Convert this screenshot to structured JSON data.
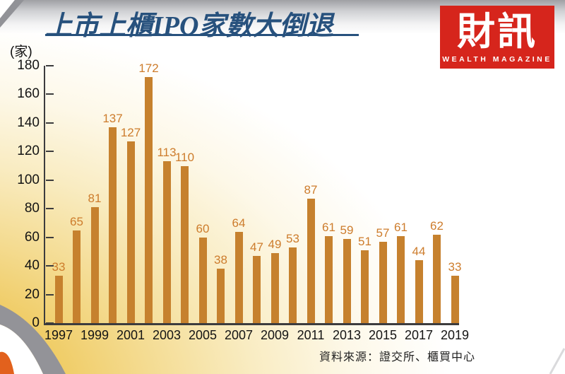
{
  "header": {
    "title": "上市上櫃IPO家數大倒退",
    "unit_label": "(家)",
    "source": "資料來源：證交所、櫃買中心"
  },
  "logo": {
    "brand": "財訊",
    "tagline": "WEALTH MAGAZINE"
  },
  "colors": {
    "bar": "#c6812e",
    "value_label": "#cd7c2c",
    "title_blue": "#27517d",
    "logo_red": "#d6251c",
    "axis": "#3c3c3e",
    "gold_glow": "#e8b838"
  },
  "chart_data": {
    "type": "bar",
    "title": "上市上櫃IPO家數大倒退",
    "unit": "家",
    "categories": [
      "1997",
      "1998",
      "1999",
      "2000",
      "2001",
      "2002",
      "2003",
      "2004",
      "2005",
      "2006",
      "2007",
      "2008",
      "2009",
      "2010",
      "2011",
      "2012",
      "2013",
      "2014",
      "2015",
      "2016",
      "2017",
      "2018",
      "2019"
    ],
    "values": [
      33,
      65,
      81,
      137,
      127,
      172,
      113,
      110,
      60,
      38,
      64,
      47,
      49,
      53,
      87,
      61,
      59,
      51,
      57,
      61,
      44,
      62,
      33
    ],
    "ylim": [
      0,
      180
    ],
    "ytick_interval": 20,
    "x_labeled_categories": [
      "1997",
      "1999",
      "2001",
      "2003",
      "2005",
      "2007",
      "2009",
      "2011",
      "2013",
      "2015",
      "2017",
      "2019"
    ],
    "grid": false,
    "legend": false,
    "data_labels": true,
    "source": "資料來源：證交所、櫃買中心"
  }
}
